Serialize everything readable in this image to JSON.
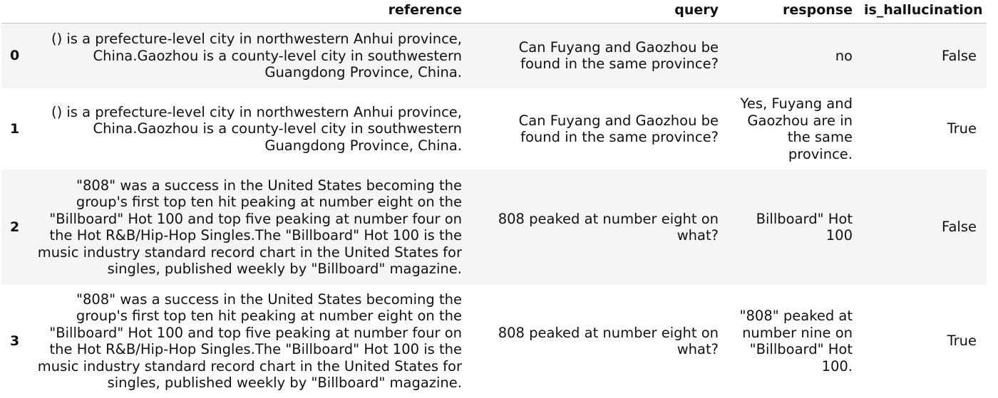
{
  "table": {
    "columns": [
      "reference",
      "query",
      "response",
      "is_hallucination"
    ],
    "rows": [
      {
        "index": "0",
        "reference": "() is a prefecture-level city in northwestern Anhui province, China.Gaozhou is a county-level city in southwestern Guangdong Province, China.",
        "query": "Can Fuyang and Gaozhou be found in the same province?",
        "response": "no",
        "is_hallucination": "False"
      },
      {
        "index": "1",
        "reference": "() is a prefecture-level city in northwestern Anhui province, China.Gaozhou is a county-level city in southwestern Guangdong Province, China.",
        "query": "Can Fuyang and Gaozhou be found in the same province?",
        "response": "Yes, Fuyang and Gaozhou are in the same province.",
        "is_hallucination": "True"
      },
      {
        "index": "2",
        "reference": "\"808\" was a success in the United States becoming the group's first top ten hit peaking at number eight on the \"Billboard\" Hot 100 and top five peaking at number four on the Hot R&B/Hip-Hop Singles.The \"Billboard\" Hot 100 is the music industry standard record chart in the United States for singles, published weekly by \"Billboard\" magazine.",
        "query": "808 peaked at number eight on what?",
        "response": "Billboard\" Hot 100",
        "is_hallucination": "False"
      },
      {
        "index": "3",
        "reference": "\"808\" was a success in the United States becoming the group's first top ten hit peaking at number eight on the \"Billboard\" Hot 100 and top five peaking at number four on the Hot R&B/Hip-Hop Singles.The \"Billboard\" Hot 100 is the music industry standard record chart in the United States for singles, published weekly by \"Billboard\" magazine.",
        "query": "808 peaked at number eight on what?",
        "response": "\"808\" peaked at number nine on \"Billboard\" Hot 100.",
        "is_hallucination": "True"
      }
    ]
  }
}
